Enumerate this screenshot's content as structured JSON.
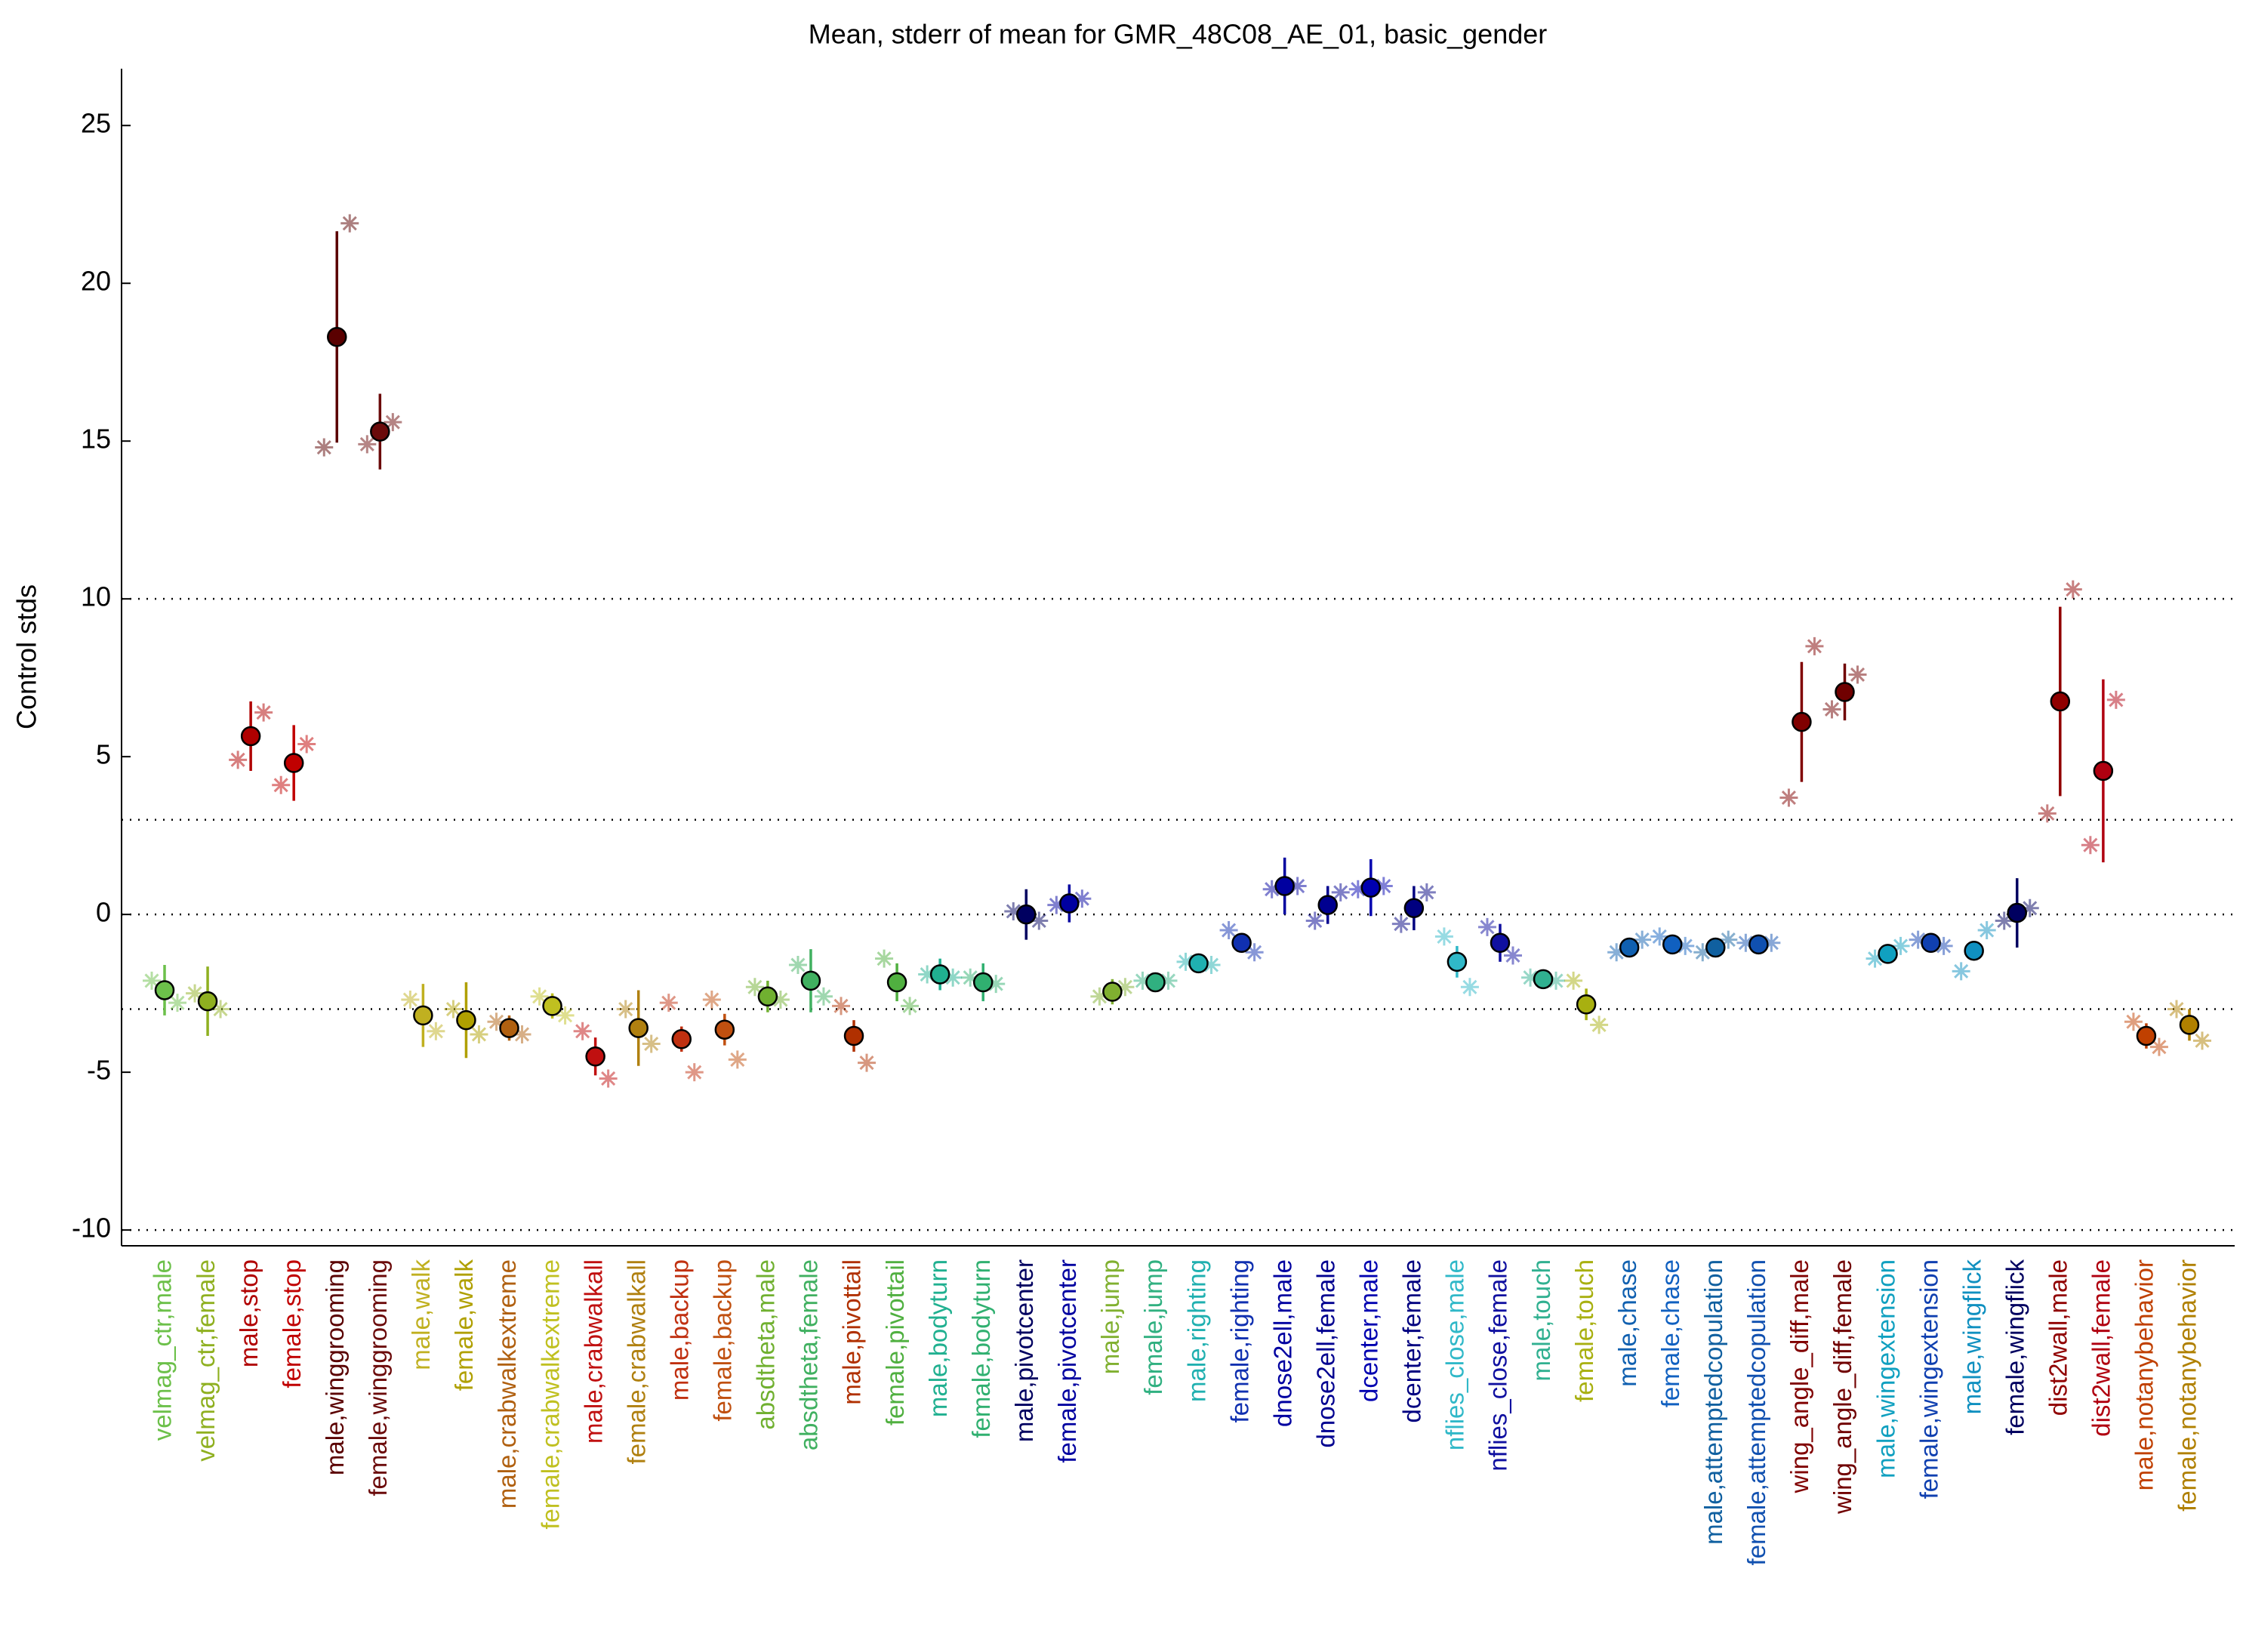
{
  "chart_data": {
    "type": "errorpoint",
    "title": "Mean, stderr of mean for GMR_48C08_AE_01, basic_gender",
    "ylabel": "Control stds",
    "categories": [
      "velmag_ctr,male",
      "velmag_ctr,female",
      "male,stop",
      "female,stop",
      "male,winggrooming",
      "female,winggrooming",
      "male,walk",
      "female,walk",
      "male,crabwalkextreme",
      "female,crabwalkextreme",
      "male,crabwalkall",
      "female,crabwalkall",
      "male,backup",
      "female,backup",
      "absdtheta,male",
      "absdtheta,female",
      "male,pivottail",
      "female,pivottail",
      "male,bodyturn",
      "female,bodyturn",
      "male,pivotcenter",
      "female,pivotcenter",
      "male,jump",
      "female,jump",
      "male,righting",
      "female,righting",
      "dnose2ell,male",
      "dnose2ell,female",
      "dcenter,male",
      "dcenter,female",
      "nflies_close,male",
      "nflies_close,female",
      "male,touch",
      "female,touch",
      "male,chase",
      "female,chase",
      "male,attemptedcopulation",
      "female,attemptedcopulation",
      "wing_angle_diff,male",
      "wing_angle_diff,female",
      "male,wingextension",
      "female,wingextension",
      "male,wingflick",
      "female,wingflick",
      "dist2wall,male",
      "dist2wall,female",
      "male,notanybehavior",
      "female,notanybehavior"
    ],
    "values": [
      -2.4,
      -2.75,
      5.65,
      4.8,
      18.3,
      15.3,
      -3.2,
      -3.35,
      -3.6,
      -2.9,
      -4.5,
      -3.6,
      -3.95,
      -3.65,
      -2.6,
      -2.1,
      -3.85,
      -2.15,
      -1.9,
      -2.15,
      0.0,
      0.35,
      -2.45,
      -2.15,
      -1.55,
      -0.9,
      0.9,
      0.3,
      0.85,
      0.2,
      -1.5,
      -0.9,
      -2.05,
      -2.85,
      -1.05,
      -0.95,
      -1.05,
      -0.95,
      6.1,
      7.05,
      -1.25,
      -0.9,
      -1.15,
      0.05,
      6.75,
      4.55,
      -3.85,
      -3.5
    ],
    "errors": [
      0.8,
      1.1,
      1.1,
      1.2,
      3.35,
      1.2,
      1.0,
      1.2,
      0.4,
      0.4,
      0.6,
      1.2,
      0.4,
      0.5,
      0.5,
      1.0,
      0.5,
      0.6,
      0.5,
      0.6,
      0.8,
      0.6,
      0.4,
      0.3,
      0.3,
      0.3,
      0.9,
      0.6,
      0.9,
      0.7,
      0.5,
      0.6,
      0.3,
      0.5,
      0.3,
      0.3,
      0.3,
      0.3,
      1.9,
      0.9,
      0.3,
      0.3,
      0.3,
      1.1,
      3.0,
      2.9,
      0.4,
      0.5
    ],
    "stars_left": [
      -2.1,
      -2.5,
      4.9,
      4.1,
      14.8,
      14.9,
      -2.7,
      -3.0,
      -3.4,
      -2.6,
      -3.7,
      -3.0,
      -2.8,
      -2.7,
      -2.3,
      -1.6,
      -2.9,
      -1.4,
      -1.9,
      -2.0,
      0.1,
      0.3,
      -2.6,
      -2.1,
      -1.5,
      -0.5,
      0.8,
      -0.2,
      0.8,
      -0.3,
      -0.7,
      -0.4,
      -2.0,
      -2.1,
      -1.2,
      -0.7,
      -1.2,
      -0.9,
      3.7,
      6.5,
      -1.4,
      -0.8,
      -1.8,
      -0.2,
      3.2,
      2.2,
      -3.4,
      -3.0
    ],
    "stars_right": [
      -2.8,
      -3.0,
      6.4,
      5.4,
      21.9,
      15.6,
      -3.7,
      -3.8,
      -3.8,
      -3.2,
      -5.2,
      -4.1,
      -5.0,
      -4.6,
      -2.7,
      -2.6,
      -4.7,
      -2.9,
      -2.0,
      -2.2,
      -0.2,
      0.5,
      -2.3,
      -2.1,
      -1.6,
      -1.2,
      0.9,
      0.7,
      0.9,
      0.7,
      -2.3,
      -1.3,
      -2.1,
      -3.5,
      -0.8,
      -1.0,
      -0.8,
      -0.9,
      8.5,
      7.6,
      -1.0,
      -1.0,
      -0.5,
      0.2,
      10.3,
      6.8,
      -4.2,
      -4.0
    ],
    "colors": [
      "#6cc04a",
      "#8fb020",
      "#b00000",
      "#c00000",
      "#5a0000",
      "#6b0a0a",
      "#c0b020",
      "#b0a000",
      "#b06010",
      "#c0c020",
      "#c01010",
      "#b08010",
      "#c03010",
      "#c05010",
      "#70b030",
      "#40b060",
      "#b03000",
      "#50b040",
      "#20b090",
      "#30b070",
      "#000060",
      "#0000a0",
      "#80b030",
      "#30b080",
      "#20b0b0",
      "#1030b0",
      "#0000a0",
      "#000090",
      "#0000b0",
      "#000080",
      "#30b8c8",
      "#1010a0",
      "#30b090",
      "#a8b010",
      "#1060b0",
      "#1060c0",
      "#1060a0",
      "#1050b0",
      "#800000",
      "#700000",
      "#10a0c0",
      "#1040b0",
      "#1090c0",
      "#000060",
      "#900000",
      "#b00010",
      "#c04000",
      "#b08000"
    ],
    "ylim": [
      -10.5,
      26.8
    ],
    "yticks": [
      -10,
      -5,
      0,
      5,
      10,
      15,
      20,
      25
    ],
    "reference_lines": [
      10,
      3,
      0,
      -3,
      -10
    ]
  }
}
